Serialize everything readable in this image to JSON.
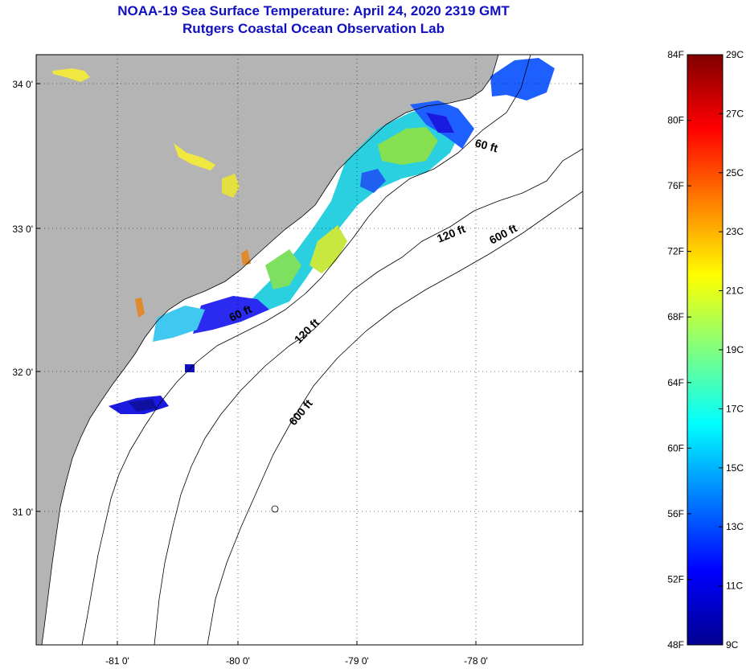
{
  "title_line1": "NOAA-19 Sea Surface Temperature:  April 24, 2020 2319 GMT",
  "title_line2": "Rutgers Coastal Ocean Observation Lab",
  "map": {
    "lon_labels": [
      "-81 0'",
      "-80 0'",
      "-79 0'",
      "-78 0'"
    ],
    "lat_labels": [
      "34 0'",
      "33 0'",
      "32 0'",
      "31 0'"
    ],
    "contour_labels": [
      "60 ft",
      "60 ft",
      "120 ft",
      "120 ft",
      "600 ft",
      "600 ft"
    ],
    "colors": {
      "land": "#b4b4b4",
      "ocean": "#ffffff",
      "gridline": "#000000"
    }
  },
  "colorbar": {
    "f_labels": [
      "84F",
      "80F",
      "76F",
      "72F",
      "68F",
      "64F",
      "60F",
      "56F",
      "52F",
      "48F"
    ],
    "c_labels": [
      "29C",
      "27C",
      "25C",
      "23C",
      "21C",
      "19C",
      "17C",
      "15C",
      "13C",
      "11C",
      "9C"
    ],
    "range_f": [
      48,
      84
    ],
    "range_c": [
      9,
      29
    ],
    "colormap": "jet"
  }
}
